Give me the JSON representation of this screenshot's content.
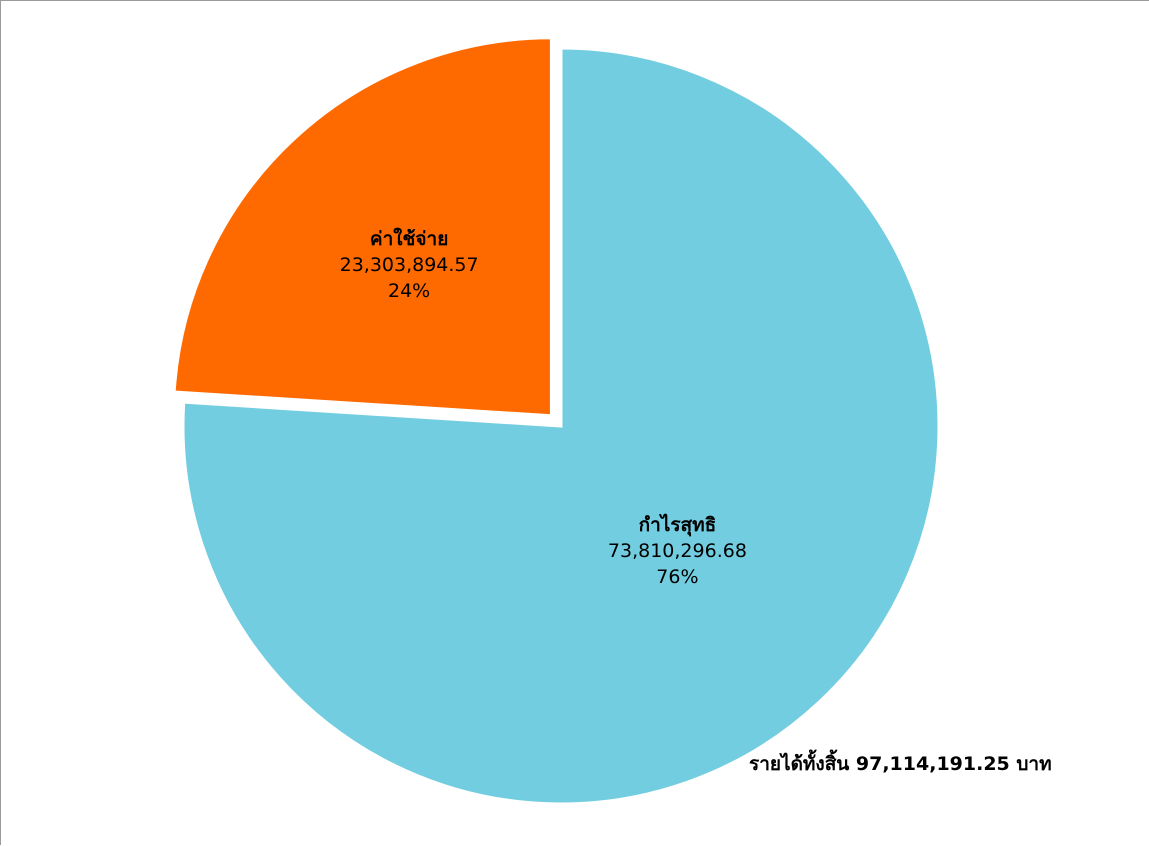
{
  "chart_data": {
    "type": "pie",
    "slices": [
      {
        "name": "ค่าใช้จ่าย",
        "value_label": "23,303,894.57",
        "value": 23303894.57,
        "percent_label": "24%",
        "percent": 24,
        "color": "#ff6a00",
        "exploded": true
      },
      {
        "name": "กำไรสุทธิ",
        "value_label": "73,810,296.68",
        "value": 73810296.68,
        "percent_label": "76%",
        "percent": 76,
        "color": "#72cde0",
        "exploded": false
      }
    ],
    "annotation": "รายได้ทั้งสิ้น 97,114,191.25 บาท"
  }
}
